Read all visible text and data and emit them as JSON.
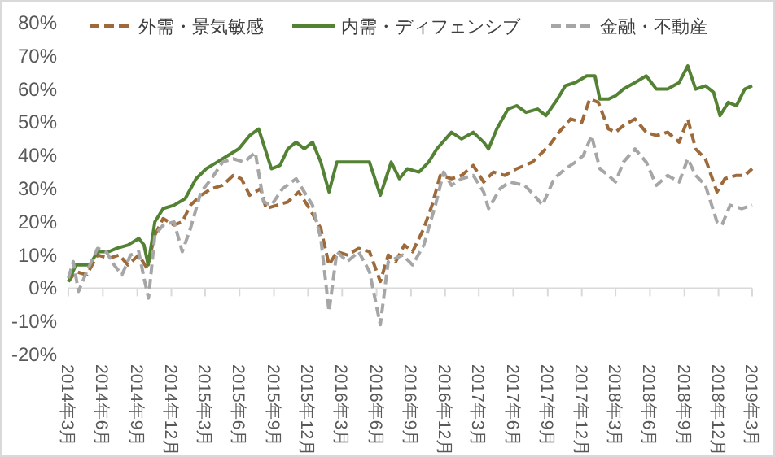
{
  "chart_data": {
    "type": "line",
    "legend": "top",
    "xlim": [
      "2014-03",
      "2019-03"
    ],
    "xticks": [
      {
        "value": "2014-03",
        "label": "2014年3月"
      },
      {
        "value": "2014-06",
        "label": "2014年6月"
      },
      {
        "value": "2014-09",
        "label": "2014年9月"
      },
      {
        "value": "2014-12",
        "label": "2014年12月"
      },
      {
        "value": "2015-03",
        "label": "2015年3月"
      },
      {
        "value": "2015-06",
        "label": "2015年6月"
      },
      {
        "value": "2015-09",
        "label": "2015年9月"
      },
      {
        "value": "2015-12",
        "label": "2015年12月"
      },
      {
        "value": "2016-03",
        "label": "2016年3月"
      },
      {
        "value": "2016-06",
        "label": "2016年6月"
      },
      {
        "value": "2016-09",
        "label": "2016年9月"
      },
      {
        "value": "2016-12",
        "label": "2016年12月"
      },
      {
        "value": "2017-03",
        "label": "2017年3月"
      },
      {
        "value": "2017-06",
        "label": "2017年6月"
      },
      {
        "value": "2017-09",
        "label": "2017年9月"
      },
      {
        "value": "2017-12",
        "label": "2017年12月"
      },
      {
        "value": "2018-03",
        "label": "2018年3月"
      },
      {
        "value": "2018-06",
        "label": "2018年6月"
      },
      {
        "value": "2018-09",
        "label": "2018年9月"
      },
      {
        "value": "2018-12",
        "label": "2018年12月"
      },
      {
        "value": "2019-03",
        "label": "2019年3月"
      }
    ],
    "ylim": [
      -20,
      80
    ],
    "yticks": [
      {
        "value": -20,
        "label": "-20%"
      },
      {
        "value": -10,
        "label": "-10%"
      },
      {
        "value": 0,
        "label": "0%"
      },
      {
        "value": 10,
        "label": "10%"
      },
      {
        "value": 20,
        "label": "20%"
      },
      {
        "value": 30,
        "label": "30%"
      },
      {
        "value": 40,
        "label": "40%"
      },
      {
        "value": 50,
        "label": "50%"
      },
      {
        "value": 60,
        "label": "60%"
      },
      {
        "value": 70,
        "label": "70%"
      },
      {
        "value": 80,
        "label": "80%"
      }
    ],
    "series": [
      {
        "name": "外需・景気敏感",
        "color": "#9e6a3a",
        "line_style": "dashed",
        "x": [
          "2014-03-01",
          "2014-03-21",
          "2014-04-19",
          "2014-05-18",
          "2014-06-17",
          "2014-07-15",
          "2014-08-07",
          "2014-09-05",
          "2014-09-27",
          "2014-10-18",
          "2014-11-09",
          "2014-12-08",
          "2014-12-30",
          "2015-01-21",
          "2015-02-18",
          "2015-03-18",
          "2015-04-17",
          "2015-05-15",
          "2015-06-06",
          "2015-06-28",
          "2015-07-27",
          "2015-08-11",
          "2015-09-09",
          "2015-10-08",
          "2015-11-06",
          "2015-12-05",
          "2016-01-04",
          "2016-01-26",
          "2016-02-16",
          "2016-03-15",
          "2016-04-14",
          "2016-05-13",
          "2016-06-11",
          "2016-07-02",
          "2016-07-22",
          "2016-08-14",
          "2016-09-05",
          "2016-10-05",
          "2016-10-27",
          "2016-11-18",
          "2016-12-18",
          "2017-01-14",
          "2017-02-14",
          "2017-03-14",
          "2017-04-09",
          "2017-05-09",
          "2017-06-10",
          "2017-07-22",
          "2017-09-05",
          "2017-10-01",
          "2017-11-01",
          "2017-12-01",
          "2017-12-22",
          "2018-01-14",
          "2018-02-10",
          "2018-03-01",
          "2018-03-22",
          "2018-04-22",
          "2018-05-22",
          "2018-06-18",
          "2018-07-18",
          "2018-08-18",
          "2018-09-10",
          "2018-10-01",
          "2018-10-27",
          "2018-11-27",
          "2018-12-18",
          "2019-01-18",
          "2019-02-09",
          "2019-03-01"
        ],
        "values": [
          2,
          5,
          4,
          10,
          9,
          10,
          7,
          10,
          6,
          16,
          21,
          19,
          20,
          25,
          28,
          30,
          31,
          34,
          33,
          28,
          30,
          24,
          25,
          26,
          29,
          24,
          18,
          7,
          11,
          10,
          12,
          11,
          2,
          10,
          8,
          13,
          11,
          18,
          25,
          34,
          33,
          34,
          37,
          32,
          35,
          34,
          36,
          38,
          43,
          47,
          51,
          50,
          57,
          56,
          48,
          47,
          49,
          51,
          47,
          46,
          47,
          44,
          51,
          42,
          39,
          29,
          33,
          34,
          34,
          36
        ]
      },
      {
        "name": "内需・ディフェンシブ",
        "color": "#548235",
        "line_style": "solid",
        "x": [
          "2014-03-01",
          "2014-03-21",
          "2014-04-27",
          "2014-05-18",
          "2014-06-17",
          "2014-07-08",
          "2014-08-07",
          "2014-09-05",
          "2014-09-19",
          "2014-09-30",
          "2014-10-18",
          "2014-11-09",
          "2014-12-08",
          "2015-01-07",
          "2015-02-05",
          "2015-03-04",
          "2015-04-02",
          "2015-05-01",
          "2015-05-30",
          "2015-06-28",
          "2015-07-22",
          "2015-08-11",
          "2015-08-25",
          "2015-09-17",
          "2015-10-08",
          "2015-10-30",
          "2015-11-21",
          "2015-12-13",
          "2016-01-04",
          "2016-01-26",
          "2016-02-16",
          "2016-03-15",
          "2016-04-14",
          "2016-05-13",
          "2016-06-11",
          "2016-07-10",
          "2016-08-01",
          "2016-08-22",
          "2016-09-22",
          "2016-10-18",
          "2016-11-09",
          "2016-12-18",
          "2017-01-14",
          "2017-02-14",
          "2017-03-14",
          "2017-03-27",
          "2017-04-18",
          "2017-05-18",
          "2017-06-10",
          "2017-07-05",
          "2017-08-05",
          "2017-08-27",
          "2017-09-27",
          "2017-10-18",
          "2017-11-14",
          "2017-12-14",
          "2018-01-05",
          "2018-01-18",
          "2018-02-10",
          "2018-03-01",
          "2018-03-22",
          "2018-04-22",
          "2018-05-22",
          "2018-06-18",
          "2018-07-18",
          "2018-08-18",
          "2018-09-10",
          "2018-10-01",
          "2018-10-27",
          "2018-11-18",
          "2018-12-05",
          "2018-12-27",
          "2019-01-18",
          "2019-02-09",
          "2019-03-01"
        ],
        "values": [
          2,
          7,
          7,
          11,
          11,
          12,
          13,
          15,
          13,
          7,
          20,
          24,
          25,
          27,
          33,
          36,
          38,
          40,
          42,
          46,
          48,
          41,
          36,
          37,
          42,
          44,
          42,
          44,
          38,
          29,
          38,
          38,
          38,
          38,
          28,
          38,
          33,
          36,
          35,
          38,
          42,
          47,
          45,
          47,
          44,
          42,
          48,
          54,
          55,
          53,
          54,
          52,
          57,
          61,
          62,
          64,
          64,
          57,
          57,
          58,
          60,
          62,
          64,
          60,
          60,
          62,
          67,
          60,
          61,
          59,
          52,
          56,
          55,
          60,
          61
        ]
      },
      {
        "name": "金融・不動産",
        "color": "#a6a6a6",
        "line_style": "dashed",
        "x": [
          "2014-03-01",
          "2014-03-14",
          "2014-03-28",
          "2014-04-19",
          "2014-05-18",
          "2014-06-10",
          "2014-07-01",
          "2014-07-22",
          "2014-08-14",
          "2014-09-05",
          "2014-09-19",
          "2014-10-01",
          "2014-10-18",
          "2014-11-09",
          "2014-12-08",
          "2014-12-30",
          "2015-01-21",
          "2015-02-18",
          "2015-03-18",
          "2015-04-17",
          "2015-05-15",
          "2015-06-14",
          "2015-07-13",
          "2015-08-04",
          "2015-08-25",
          "2015-09-24",
          "2015-10-30",
          "2015-11-21",
          "2015-12-13",
          "2016-01-04",
          "2016-01-26",
          "2016-02-16",
          "2016-03-15",
          "2016-04-14",
          "2016-05-13",
          "2016-06-11",
          "2016-07-02",
          "2016-08-10",
          "2016-09-05",
          "2016-10-05",
          "2016-11-05",
          "2016-11-27",
          "2016-12-18",
          "2017-01-14",
          "2017-02-14",
          "2017-03-14",
          "2017-03-27",
          "2017-04-27",
          "2017-05-22",
          "2017-07-01",
          "2017-07-27",
          "2017-08-18",
          "2017-09-18",
          "2017-10-18",
          "2017-11-14",
          "2017-12-05",
          "2017-12-27",
          "2018-01-18",
          "2018-02-10",
          "2018-03-01",
          "2018-03-22",
          "2018-04-22",
          "2018-05-22",
          "2018-06-18",
          "2018-07-18",
          "2018-08-18",
          "2018-09-10",
          "2018-10-01",
          "2018-10-27",
          "2018-11-27",
          "2018-12-10",
          "2019-01-01",
          "2019-02-01",
          "2019-03-01"
        ],
        "values": [
          3,
          8,
          -1,
          5,
          12,
          11,
          7,
          4,
          10,
          11,
          3,
          -3,
          16,
          19,
          20,
          11,
          18,
          29,
          33,
          38,
          39,
          38,
          41,
          26,
          25,
          30,
          33,
          29,
          25,
          15,
          -7,
          11,
          8,
          11,
          5,
          -11,
          8,
          10,
          7,
          13,
          25,
          35,
          31,
          33,
          34,
          29,
          24,
          30,
          32,
          31,
          28,
          25,
          33,
          36,
          38,
          40,
          46,
          36,
          34,
          32,
          38,
          42,
          38,
          31,
          34,
          32,
          39,
          34,
          31,
          20,
          19,
          25,
          24,
          25
        ]
      }
    ]
  }
}
